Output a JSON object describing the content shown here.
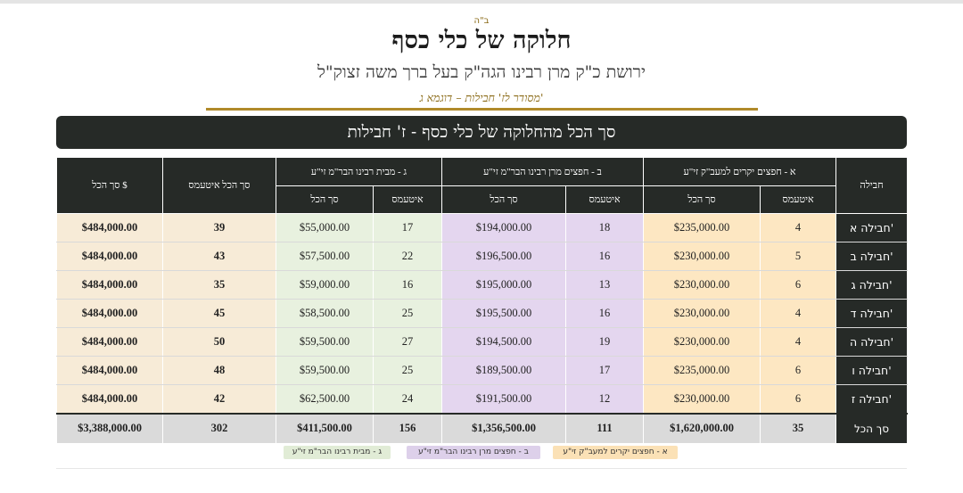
{
  "header": {
    "bh": "ב\"ה",
    "title": "חלוקה של כלי כסף",
    "subtitle": "ירושת כ\"ק מרן רבינו הגה\"ק בעל ברך משה זצוק\"ל",
    "note": "מסודר לז' חבילות – דוגמא ג'"
  },
  "banner": "סך הכל מהחלוקה של כלי כסף - ז' חבילות",
  "table": {
    "headers": {
      "package": "חבילה",
      "group_a": "א - חפצים יקרים למעב\"ק זי\"ע",
      "group_b": "ב - חפצים מרן רבינו הבר\"מ זי\"ע",
      "group_g": "ג - מבית רבינו הבר\"מ זי\"ע",
      "total_items": "סך הכל איטעמס",
      "total_dollar": "סך הכל $",
      "items": "איטעמס",
      "total": "סך הכל"
    },
    "rows": [
      {
        "name": "חבילה א'",
        "a_items": "4",
        "a_total": "$235,000.00",
        "b_items": "18",
        "b_total": "$194,000.00",
        "g_items": "17",
        "g_total": "$55,000.00",
        "items_total": "39",
        "dollar_total": "$484,000.00"
      },
      {
        "name": "חבילה ב'",
        "a_items": "5",
        "a_total": "$230,000.00",
        "b_items": "16",
        "b_total": "$196,500.00",
        "g_items": "22",
        "g_total": "$57,500.00",
        "items_total": "43",
        "dollar_total": "$484,000.00"
      },
      {
        "name": "חבילה ג'",
        "a_items": "6",
        "a_total": "$230,000.00",
        "b_items": "13",
        "b_total": "$195,000.00",
        "g_items": "16",
        "g_total": "$59,000.00",
        "items_total": "35",
        "dollar_total": "$484,000.00"
      },
      {
        "name": "חבילה ד'",
        "a_items": "4",
        "a_total": "$230,000.00",
        "b_items": "16",
        "b_total": "$195,500.00",
        "g_items": "25",
        "g_total": "$58,500.00",
        "items_total": "45",
        "dollar_total": "$484,000.00"
      },
      {
        "name": "חבילה ה'",
        "a_items": "4",
        "a_total": "$230,000.00",
        "b_items": "19",
        "b_total": "$194,500.00",
        "g_items": "27",
        "g_total": "$59,500.00",
        "items_total": "50",
        "dollar_total": "$484,000.00"
      },
      {
        "name": "חבילה ו'",
        "a_items": "6",
        "a_total": "$235,000.00",
        "b_items": "17",
        "b_total": "$189,500.00",
        "g_items": "25",
        "g_total": "$59,500.00",
        "items_total": "48",
        "dollar_total": "$484,000.00"
      },
      {
        "name": "חבילה ז'",
        "a_items": "6",
        "a_total": "$230,000.00",
        "b_items": "12",
        "b_total": "$191,500.00",
        "g_items": "24",
        "g_total": "$62,500.00",
        "items_total": "42",
        "dollar_total": "$484,000.00"
      }
    ],
    "totals": {
      "label": "סך הכל",
      "a_items": "35",
      "a_total": "$1,620,000.00",
      "b_items": "111",
      "b_total": "$1,356,500.00",
      "g_items": "156",
      "g_total": "$411,500.00",
      "items_total": "302",
      "dollar_total": "$3,388,000.00"
    }
  },
  "legend": {
    "a": "א - חפצים יקרים למעב\"ק זי\"ע",
    "b": "ב - חפצים מרן רבינו הבר\"מ זי\"ע",
    "g": "ג - מבית רבינו הבר\"מ זי\"ע"
  },
  "colors": {
    "banner": "#262a27",
    "gold": "#b08a2a",
    "group_a": "#fde7c2",
    "group_b": "#e4d6ef",
    "group_g": "#e8f1df",
    "total_cols": "#f7ebd7"
  }
}
